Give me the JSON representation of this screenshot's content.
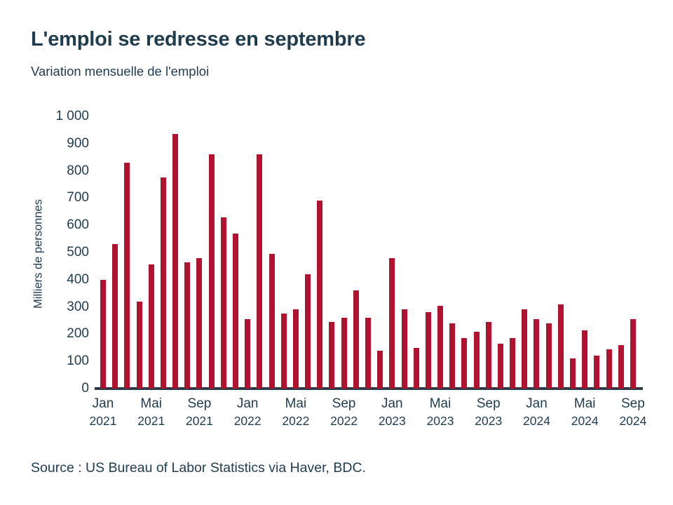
{
  "header": {
    "title": "L'emploi se redresse en septembre",
    "subtitle": "Variation mensuelle de l'emploi"
  },
  "footer": {
    "source": "Source : US Bureau of Labor Statistics via Haver, BDC."
  },
  "colors": {
    "bar": "#b0122f",
    "axis_line": "#2b3c47",
    "text": "#1e3c4e",
    "background": "#ffffff"
  },
  "chart_data": {
    "type": "bar",
    "title": "L'emploi se redresse en septembre",
    "subtitle": "Variation mensuelle de l'emploi",
    "xlabel": "",
    "ylabel": "Milliers de personnes",
    "ylim": [
      0,
      1000
    ],
    "ytick_interval": 100,
    "ytick_labels": [
      "0",
      "100",
      "200",
      "300",
      "400",
      "500",
      "600",
      "700",
      "800",
      "900",
      "1 000"
    ],
    "grid": false,
    "legend": "none",
    "bar_color": "#b0122f",
    "x": [
      "2021-01",
      "2021-02",
      "2021-03",
      "2021-04",
      "2021-05",
      "2021-06",
      "2021-07",
      "2021-08",
      "2021-09",
      "2021-10",
      "2021-11",
      "2021-12",
      "2022-01",
      "2022-02",
      "2022-03",
      "2022-04",
      "2022-05",
      "2022-06",
      "2022-07",
      "2022-08",
      "2022-09",
      "2022-10",
      "2022-11",
      "2022-12",
      "2023-01",
      "2023-02",
      "2023-03",
      "2023-04",
      "2023-05",
      "2023-06",
      "2023-07",
      "2023-08",
      "2023-09",
      "2023-10",
      "2023-11",
      "2023-12",
      "2024-01",
      "2024-02",
      "2024-03",
      "2024-04",
      "2024-05",
      "2024-06",
      "2024-07",
      "2024-08",
      "2024-09"
    ],
    "values": [
      400,
      530,
      830,
      320,
      455,
      775,
      935,
      465,
      480,
      860,
      630,
      570,
      255,
      860,
      495,
      275,
      290,
      420,
      690,
      245,
      260,
      360,
      260,
      140,
      480,
      290,
      150,
      280,
      305,
      240,
      185,
      210,
      245,
      165,
      185,
      290,
      255,
      240,
      310,
      110,
      215,
      120,
      145,
      160,
      255
    ],
    "xticks": [
      {
        "index": 0,
        "month": "Jan",
        "year": "2021"
      },
      {
        "index": 4,
        "month": "Mai",
        "year": "2021"
      },
      {
        "index": 8,
        "month": "Sep",
        "year": "2021"
      },
      {
        "index": 12,
        "month": "Jan",
        "year": "2022"
      },
      {
        "index": 16,
        "month": "Mai",
        "year": "2022"
      },
      {
        "index": 20,
        "month": "Sep",
        "year": "2022"
      },
      {
        "index": 24,
        "month": "Jan",
        "year": "2023"
      },
      {
        "index": 28,
        "month": "Mai",
        "year": "2023"
      },
      {
        "index": 32,
        "month": "Sep",
        "year": "2023"
      },
      {
        "index": 36,
        "month": "Jan",
        "year": "2024"
      },
      {
        "index": 40,
        "month": "Mai",
        "year": "2024"
      },
      {
        "index": 44,
        "month": "Sep",
        "year": "2024"
      }
    ]
  }
}
